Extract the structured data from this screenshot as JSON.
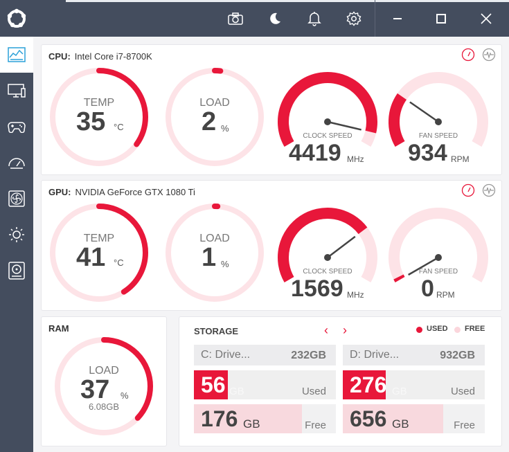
{
  "colors": {
    "accent": "#e8173a",
    "track": "#fde3e7",
    "sidebar": "#444d5e"
  },
  "titlebar": {
    "icons": [
      "logo-icon",
      "camera-icon",
      "moon-icon",
      "bell-icon",
      "gear-icon",
      "minimize-icon",
      "maximize-icon",
      "close-icon"
    ]
  },
  "sidebar": {
    "items": [
      "dashboard-icon",
      "monitor-icon",
      "gamepad-icon",
      "speedometer-icon",
      "fan-icon",
      "brightness-icon",
      "disk-icon"
    ]
  },
  "cpu": {
    "prefix": "CPU:",
    "name": "Intel Core i7-8700K",
    "temp": {
      "label": "TEMP",
      "value": "35",
      "unit": "°C",
      "fraction": 0.35
    },
    "load": {
      "label": "LOAD",
      "value": "2",
      "unit": "%",
      "fraction": 0.02
    },
    "clock": {
      "label": "CLOCK SPEED",
      "value": "4419",
      "unit": "MHz",
      "fraction": 0.93
    },
    "fan": {
      "label": "FAN SPEED",
      "value": "934",
      "unit": "RPM",
      "fraction": 0.27
    }
  },
  "gpu": {
    "prefix": "GPU:",
    "name": "NVIDIA GeForce GTX 1080 Ti",
    "temp": {
      "label": "TEMP",
      "value": "41",
      "unit": "°C",
      "fraction": 0.41
    },
    "load": {
      "label": "LOAD",
      "value": "1",
      "unit": "%",
      "fraction": 0.01
    },
    "clock": {
      "label": "CLOCK SPEED",
      "value": "1569",
      "unit": "MHz",
      "fraction": 0.72
    },
    "fan": {
      "label": "FAN SPEED",
      "value": "0",
      "unit": "RPM",
      "fraction": 0.0
    }
  },
  "ram": {
    "title": "RAM",
    "label": "LOAD",
    "value": "37",
    "unit": "%",
    "sub": "6.08GB",
    "fraction": 0.37
  },
  "storage": {
    "title": "STORAGE",
    "legend_used": "USED",
    "legend_free": "FREE",
    "drives": [
      {
        "name": "C: Drive...",
        "size": "232GB",
        "used": "56",
        "used_unit": "GB",
        "used_word": "Used",
        "free": "176",
        "free_unit": "GB",
        "free_word": "Free",
        "used_fraction": 0.24
      },
      {
        "name": "D: Drive...",
        "size": "932GB",
        "used": "276",
        "used_unit": "GB",
        "used_word": "Used",
        "free": "656",
        "free_unit": "GB",
        "free_word": "Free",
        "used_fraction": 0.3
      }
    ]
  }
}
